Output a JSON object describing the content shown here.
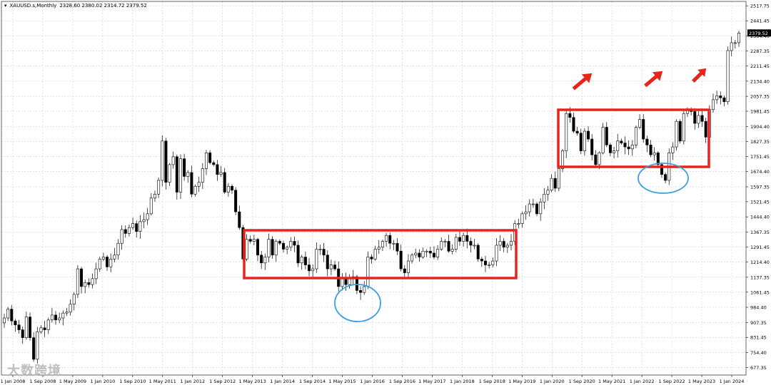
{
  "header": {
    "symbol": "XAUUSD.s,Monthly",
    "ohlc": "2328.60 2380.02 2314.72 2379.52"
  },
  "watermark": "大数跨境",
  "colors": {
    "background": "#ffffff",
    "grid": "#c8c8c8",
    "candle": "#000000",
    "box": "#e8231c",
    "circle": "#3aa0e0",
    "arrow": "#e8231c",
    "price_tag_bg": "#000000"
  },
  "chart_data": {
    "type": "candlestick",
    "title": "XAUUSD.s,Monthly",
    "ylim": [
      640.0,
      2540.0
    ],
    "y_ticks": [
      "2517.75",
      "2441.45",
      "2364.40",
      "2287.35",
      "2211.45",
      "2134.40",
      "2057.35",
      "1981.45",
      "1904.40",
      "1827.35",
      "1751.45",
      "1674.40",
      "1597.35",
      "1521.45",
      "1444.40",
      "1367.35",
      "1291.45",
      "1214.40",
      "1137.35",
      "1061.45",
      "984.40",
      "907.35",
      "831.45",
      "754.40",
      "677.35"
    ],
    "x_ticks": [
      "1 Jan 2008",
      "1 Sep 2008",
      "1 May 2009",
      "1 Jan 2010",
      "1 Sep 2010",
      "1 May 2011",
      "1 Jan 2012",
      "1 Sep 2012",
      "1 May 2013",
      "1 Jan 2014",
      "1 Sep 2014",
      "1 May 2015",
      "1 Jan 2016",
      "1 Sep 2016",
      "1 May 2017",
      "1 Jan 2018",
      "1 Sep 2018",
      "1 May 2019",
      "1 Jan 2020",
      "1 Sep 2020",
      "1 May 2021",
      "1 Jan 2022",
      "1 Sep 2022",
      "1 May 2023",
      "1 Jan 2024"
    ],
    "current_price": "2379.52",
    "grid": true,
    "closes": [
      930,
      975,
      915,
      895,
      870,
      830,
      935,
      830,
      720,
      860,
      880,
      870,
      920,
      945,
      920,
      930,
      955,
      960,
      1000,
      1050,
      1180,
      1090,
      1110,
      1100,
      1130,
      1180,
      1230,
      1240,
      1190,
      1230,
      1250,
      1310,
      1380,
      1360,
      1390,
      1410,
      1370,
      1420,
      1430,
      1460,
      1540,
      1560,
      1630,
      1830,
      1620,
      1710,
      1750,
      1570,
      1740,
      1650,
      1670,
      1560,
      1600,
      1620,
      1690,
      1770,
      1720,
      1710,
      1660,
      1670,
      1570,
      1600,
      1580,
      1470,
      1390,
      1230,
      1330,
      1320,
      1330,
      1250,
      1210,
      1240,
      1330,
      1250,
      1320,
      1310,
      1280,
      1290,
      1320,
      1300,
      1210,
      1240,
      1200,
      1170,
      1180,
      1280,
      1280,
      1250,
      1180,
      1200,
      1180,
      1090,
      1130,
      1100,
      1130,
      1140,
      1070,
      1060,
      1090,
      1240,
      1230,
      1280,
      1290,
      1320,
      1350,
      1310,
      1310,
      1270,
      1180,
      1160,
      1220,
      1250,
      1260,
      1240,
      1270,
      1270,
      1260,
      1240,
      1280,
      1320,
      1320,
      1270,
      1280,
      1340,
      1320,
      1350,
      1320,
      1300,
      1300,
      1230,
      1220,
      1200,
      1200,
      1220,
      1300,
      1320,
      1290,
      1300,
      1320,
      1410,
      1410,
      1460,
      1470,
      1510,
      1510,
      1460,
      1520,
      1560,
      1580,
      1640,
      1590,
      1690,
      1780,
      1970,
      1950,
      1880,
      1870,
      1780,
      1880,
      1840,
      1760,
      1710,
      1770,
      1900,
      1810,
      1770,
      1780,
      1830,
      1820,
      1800,
      1790,
      1810,
      1900,
      1940,
      1840,
      1810,
      1760,
      1770,
      1710,
      1660,
      1630,
      1770,
      1800,
      1930,
      1830,
      1970,
      1990,
      1980,
      1920,
      1960,
      1930,
      1850,
      1990,
      2040,
      2060,
      2050,
      2030,
      2290,
      2330,
      2330,
      2379.52
    ]
  }
}
